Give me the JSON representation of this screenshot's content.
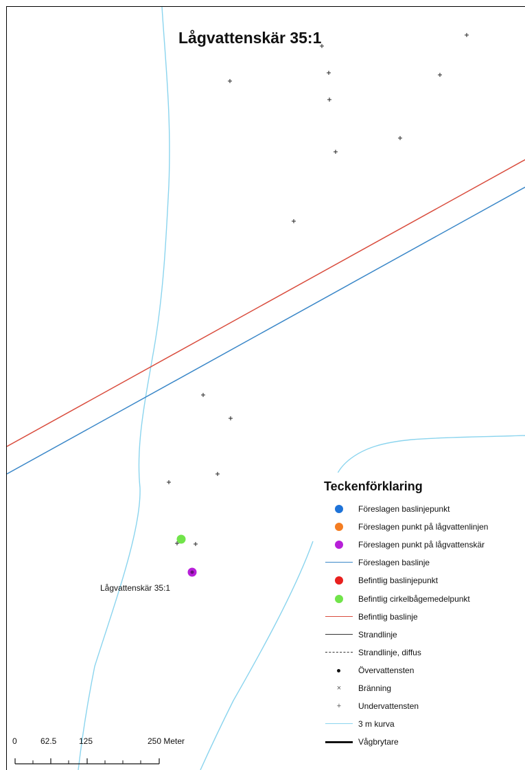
{
  "map": {
    "title": "Lågvattenskär 35:1",
    "point_label": "Lågvattenskär 35:1",
    "colors": {
      "proposed_baseline": "#3a87c8",
      "existing_baseline": "#d94c3d",
      "contour_3m": "#8ad4ee",
      "point_proposed_lowwater_skerry": "#b71fd8",
      "point_existing_arc_center": "#71e44a"
    }
  },
  "legend": {
    "title": "Teckenförklaring",
    "items": [
      {
        "label": "Föreslagen baslinjepunkt",
        "symbol": "dot",
        "color": "#1e73d8"
      },
      {
        "label": "Föreslagen punkt på lågvattenlinjen",
        "symbol": "dot",
        "color": "#f47d22"
      },
      {
        "label": "Föreslagen punkt på lågvattenskär",
        "symbol": "dot",
        "color": "#b71fd8"
      },
      {
        "label": "Föreslagen baslinje",
        "symbol": "line",
        "color": "#3a87c8"
      },
      {
        "label": "Befintlig baslinjepunkt",
        "symbol": "dot",
        "color": "#e8201e"
      },
      {
        "label": "Befintlig cirkelbågemedelpunkt",
        "symbol": "dot",
        "color": "#71e44a"
      },
      {
        "label": "Befintlig baslinje",
        "symbol": "line",
        "color": "#d94c3d"
      },
      {
        "label": "Strandlinje",
        "symbol": "line",
        "color": "#333333"
      },
      {
        "label": "Strandlinje, diffus",
        "symbol": "dashed-line",
        "color": "#333333"
      },
      {
        "label": "Övervattensten",
        "symbol": "small-dot",
        "color": "#111111"
      },
      {
        "label": "Bränning",
        "symbol": "x-mark",
        "color": "#555555"
      },
      {
        "label": "Undervattensten",
        "symbol": "plus-mark",
        "color": "#555555"
      },
      {
        "label": "3 m kurva",
        "symbol": "line",
        "color": "#8ad4ee"
      },
      {
        "label": "Vågbrytare",
        "symbol": "thick-line",
        "color": "#111111"
      }
    ]
  },
  "scalebar": {
    "labels": [
      "0",
      "62.5",
      "125",
      "250 Meter"
    ]
  }
}
